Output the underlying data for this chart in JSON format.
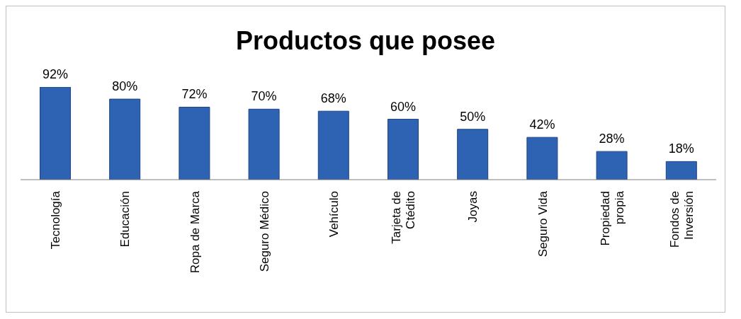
{
  "chart_data": {
    "type": "bar",
    "title": "Productos que posee",
    "categories": [
      "Tecnología",
      "Educación",
      "Ropa de Marca",
      "Seguro Médico",
      "Vehículo",
      "Tarjeta de\nCtédito",
      "Joyas",
      "Seguro Vida",
      "Propiedad\npropia",
      "Fondos de\nInversión"
    ],
    "values": [
      92,
      80,
      72,
      70,
      68,
      60,
      50,
      42,
      28,
      18
    ],
    "value_labels": [
      "92%",
      "80%",
      "72%",
      "70%",
      "68%",
      "60%",
      "50%",
      "42%",
      "28%",
      "18%"
    ],
    "color": "#2e63b3"
  }
}
